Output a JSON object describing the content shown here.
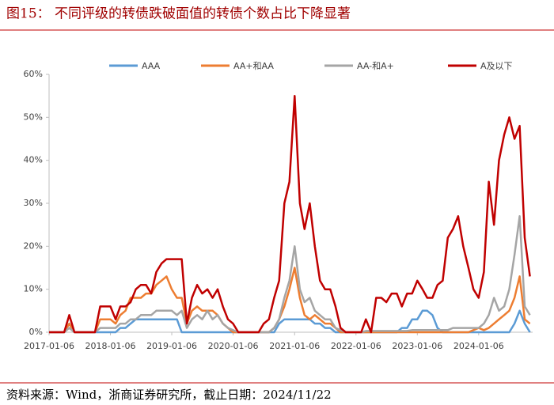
{
  "chart_data": {
    "type": "line",
    "title": "图15：  不同评级的转债跌破面值的转债个数占比下降显著",
    "source": "资料来源：Wind，浙商证券研究所，截止日期：2024/11/22",
    "x": [
      "2017-01-06",
      "2017-02-06",
      "2017-03-06",
      "2017-04-06",
      "2017-05-06",
      "2017-06-06",
      "2017-07-06",
      "2017-08-06",
      "2017-09-06",
      "2017-10-06",
      "2017-11-06",
      "2017-12-06",
      "2018-01-06",
      "2018-02-06",
      "2018-03-06",
      "2018-04-06",
      "2018-05-06",
      "2018-06-06",
      "2018-07-06",
      "2018-08-06",
      "2018-09-06",
      "2018-10-06",
      "2018-11-06",
      "2018-12-06",
      "2019-01-06",
      "2019-02-06",
      "2019-03-06",
      "2019-04-06",
      "2019-05-06",
      "2019-06-06",
      "2019-07-06",
      "2019-08-06",
      "2019-09-06",
      "2019-10-06",
      "2019-11-06",
      "2019-12-06",
      "2020-01-06",
      "2020-02-06",
      "2020-03-06",
      "2020-04-06",
      "2020-05-06",
      "2020-06-06",
      "2020-07-06",
      "2020-08-06",
      "2020-09-06",
      "2020-10-06",
      "2020-11-06",
      "2020-12-06",
      "2021-01-06",
      "2021-02-06",
      "2021-03-06",
      "2021-04-06",
      "2021-05-06",
      "2021-06-06",
      "2021-07-06",
      "2021-08-06",
      "2021-09-06",
      "2021-10-06",
      "2021-11-06",
      "2021-12-06",
      "2022-01-06",
      "2022-02-06",
      "2022-03-06",
      "2022-04-06",
      "2022-05-06",
      "2022-06-06",
      "2022-07-06",
      "2022-08-06",
      "2022-09-06",
      "2022-10-06",
      "2022-11-06",
      "2022-12-06",
      "2023-01-06",
      "2023-02-06",
      "2023-03-06",
      "2023-04-06",
      "2023-05-06",
      "2023-06-06",
      "2023-07-06",
      "2023-08-06",
      "2023-09-06",
      "2023-10-06",
      "2023-11-06",
      "2023-12-06",
      "2024-01-06",
      "2024-02-06",
      "2024-03-06",
      "2024-04-06",
      "2024-05-06",
      "2024-06-06",
      "2024-07-06",
      "2024-08-06",
      "2024-09-06",
      "2024-10-06",
      "2024-11-06"
    ],
    "series": [
      {
        "name": "AAA",
        "color": "#5b9bd5",
        "values": [
          0,
          0,
          0,
          0,
          2,
          0,
          0,
          0,
          0,
          0,
          0,
          0,
          0,
          0,
          1,
          1,
          2,
          3,
          3,
          3,
          3,
          3,
          3,
          3,
          3,
          3,
          0,
          0,
          0,
          0,
          0,
          0,
          0,
          0,
          0,
          0,
          0,
          0,
          0,
          0,
          0,
          0,
          0,
          0,
          0,
          2,
          3,
          3,
          3,
          3,
          3,
          3,
          2,
          2,
          1,
          1,
          0,
          0,
          0,
          0,
          0,
          0,
          0,
          0,
          0,
          0,
          0,
          0,
          0,
          1,
          1,
          3,
          3,
          5,
          5,
          4,
          1,
          0,
          0,
          0,
          0,
          0,
          0,
          0,
          0,
          0,
          0,
          0,
          0,
          0,
          0,
          2,
          5,
          2,
          0
        ]
      },
      {
        "name": "AA+和AA",
        "color": "#ed7d31",
        "values": [
          0,
          0,
          0,
          0,
          2,
          0,
          0,
          0,
          0,
          0,
          3,
          3,
          3,
          2,
          4,
          5,
          8,
          8,
          8,
          9,
          9,
          11,
          12,
          13,
          10,
          8,
          8,
          2,
          5,
          6,
          5,
          5,
          5,
          4,
          2,
          1,
          0,
          0,
          0,
          0,
          0,
          0,
          0,
          0,
          1,
          3,
          6,
          10,
          15,
          8,
          4,
          3,
          4,
          3,
          2,
          2,
          1,
          0,
          0,
          0,
          0,
          0,
          0,
          0,
          0,
          0,
          0,
          0,
          0,
          0,
          0,
          0,
          0,
          0,
          0,
          0,
          0,
          0,
          0,
          0,
          0,
          0,
          0,
          0.5,
          1,
          0.5,
          1,
          2,
          3,
          4,
          5,
          8,
          13,
          3,
          2
        ]
      },
      {
        "name": "AA-和A+",
        "color": "#a5a5a5",
        "values": [
          0,
          0,
          0,
          0,
          1,
          0,
          0,
          0,
          0,
          0,
          1,
          1,
          1,
          1,
          2,
          2,
          3,
          3,
          4,
          4,
          4,
          5,
          5,
          5,
          5,
          4,
          5,
          1,
          3,
          4,
          3,
          5,
          3,
          4,
          2,
          1,
          0.5,
          0,
          0,
          0,
          0,
          0,
          0,
          0,
          1,
          3,
          8,
          12,
          20,
          10,
          7,
          8,
          5,
          4,
          3,
          3,
          1,
          0.5,
          0,
          0,
          0,
          0,
          0.3,
          0.3,
          0.3,
          0.3,
          0.3,
          0.3,
          0.3,
          0.3,
          0.3,
          0.5,
          0.5,
          0.5,
          0.5,
          0.5,
          0.5,
          0.5,
          0.5,
          1,
          1,
          1,
          1,
          1,
          1,
          2,
          4,
          8,
          5,
          6,
          10,
          18,
          27,
          6,
          4
        ]
      },
      {
        "name": "A及以下",
        "color": "#c00000",
        "values": [
          0,
          0,
          0,
          0,
          4,
          0,
          0,
          0,
          0,
          0,
          6,
          6,
          6,
          3,
          6,
          6,
          7,
          10,
          11,
          11,
          9,
          14,
          16,
          17,
          17,
          17,
          17,
          2,
          8,
          11,
          9,
          10,
          8,
          10,
          6,
          3,
          2,
          0,
          0,
          0,
          0,
          0,
          2,
          3,
          8,
          12,
          30,
          35,
          55,
          30,
          24,
          30,
          20,
          12,
          10,
          10,
          6,
          1,
          0,
          0,
          0,
          0,
          3,
          0,
          8,
          8,
          7,
          9,
          9,
          6,
          9,
          9,
          12,
          10,
          8,
          8,
          11,
          12,
          22,
          24,
          27,
          20,
          15,
          10,
          8,
          14,
          35,
          25,
          40,
          46,
          50,
          45,
          48,
          22,
          13
        ]
      }
    ],
    "xlim": [
      "2017-01-06",
      "2024-11-22"
    ],
    "xticks": [
      "2017-01-06",
      "2018-01-06",
      "2019-01-06",
      "2020-01-06",
      "2021-01-06",
      "2022-01-06",
      "2023-01-06",
      "2024-01-06"
    ],
    "ylim": [
      0,
      60
    ],
    "yticks": [
      {
        "value": 0,
        "label": "0%"
      },
      {
        "value": 10,
        "label": "10%"
      },
      {
        "value": 20,
        "label": "20%"
      },
      {
        "value": 30,
        "label": "30%"
      },
      {
        "value": 40,
        "label": "40%"
      },
      {
        "value": 50,
        "label": "50%"
      },
      {
        "value": 60,
        "label": "60%"
      }
    ],
    "legend": "top",
    "grid": false
  }
}
